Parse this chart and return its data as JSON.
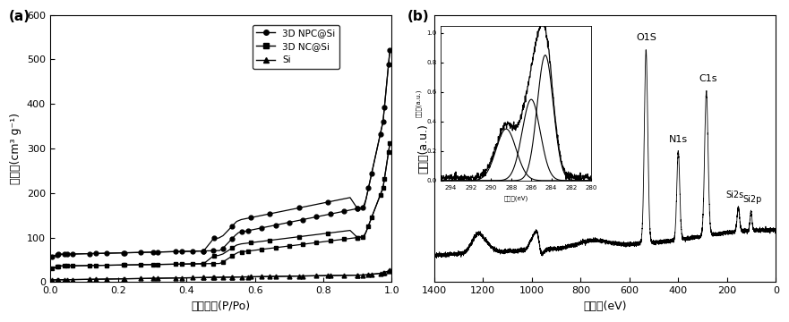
{
  "panel_a": {
    "label": "(a)",
    "ylabel": "吸附量(cm³ g⁻¹)",
    "xlabel": "相对压力(P/Po)",
    "ylim": [
      0,
      600
    ],
    "xlim": [
      0.0,
      1.0
    ],
    "yticks": [
      0,
      100,
      200,
      300,
      400,
      500,
      600
    ],
    "xticks": [
      0.0,
      0.2,
      0.4,
      0.6,
      0.8,
      1.0
    ],
    "legend_entries": [
      "3D NPC@Si",
      "3D NC@Si",
      "Si"
    ]
  },
  "panel_b": {
    "label": "(b)",
    "ylabel": "峰强度(a.u.)",
    "xlabel": "结合能(eV)",
    "xlim": [
      1400,
      0
    ],
    "peak_labels": [
      "O1S",
      "N1s",
      "C1s",
      "Si2s",
      "Si2p"
    ],
    "peak_positions": [
      532,
      400,
      285,
      154,
      102
    ],
    "inset_xlabel": "结合能(eV)",
    "inset_ylabel": "峰强度(a.u.)"
  },
  "background_color": "#ffffff"
}
